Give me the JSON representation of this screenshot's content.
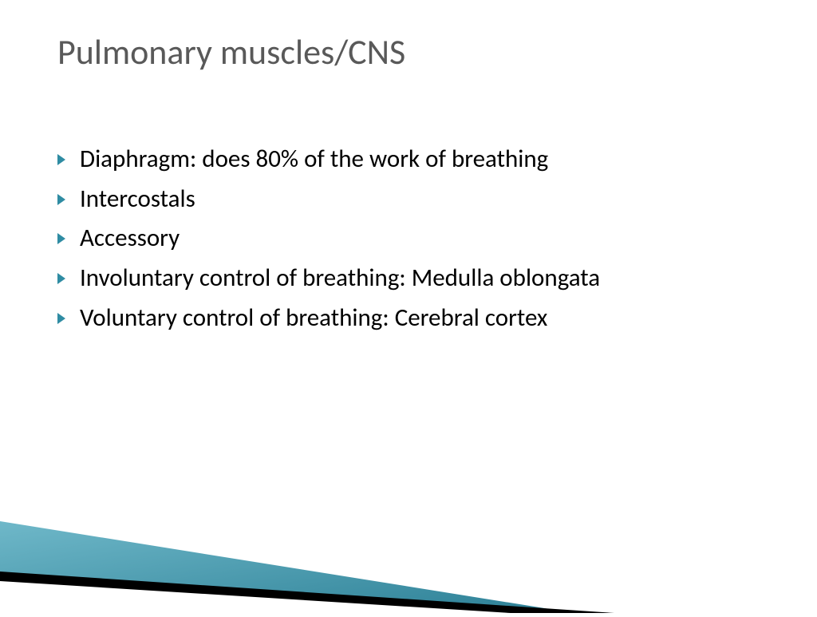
{
  "title": "Pulmonary muscles/CNS",
  "title_color": "#595959",
  "title_fontsize": 44,
  "bullet_marker_color": "#2f8ca3",
  "bullet_text_color": "#000000",
  "bullet_fontsize": 31,
  "bullets": [
    "Diaphragm: does 80% of the work of breathing",
    "Intercostals",
    "Accessory",
    "Involuntary control of breathing: Medulla oblongata",
    "Voluntary control of  breathing: Cerebral cortex"
  ],
  "decoration": {
    "teal_light": "#6fb8c9",
    "teal_dark": "#2b7f95",
    "black": "#000000",
    "white": "#ffffff"
  }
}
